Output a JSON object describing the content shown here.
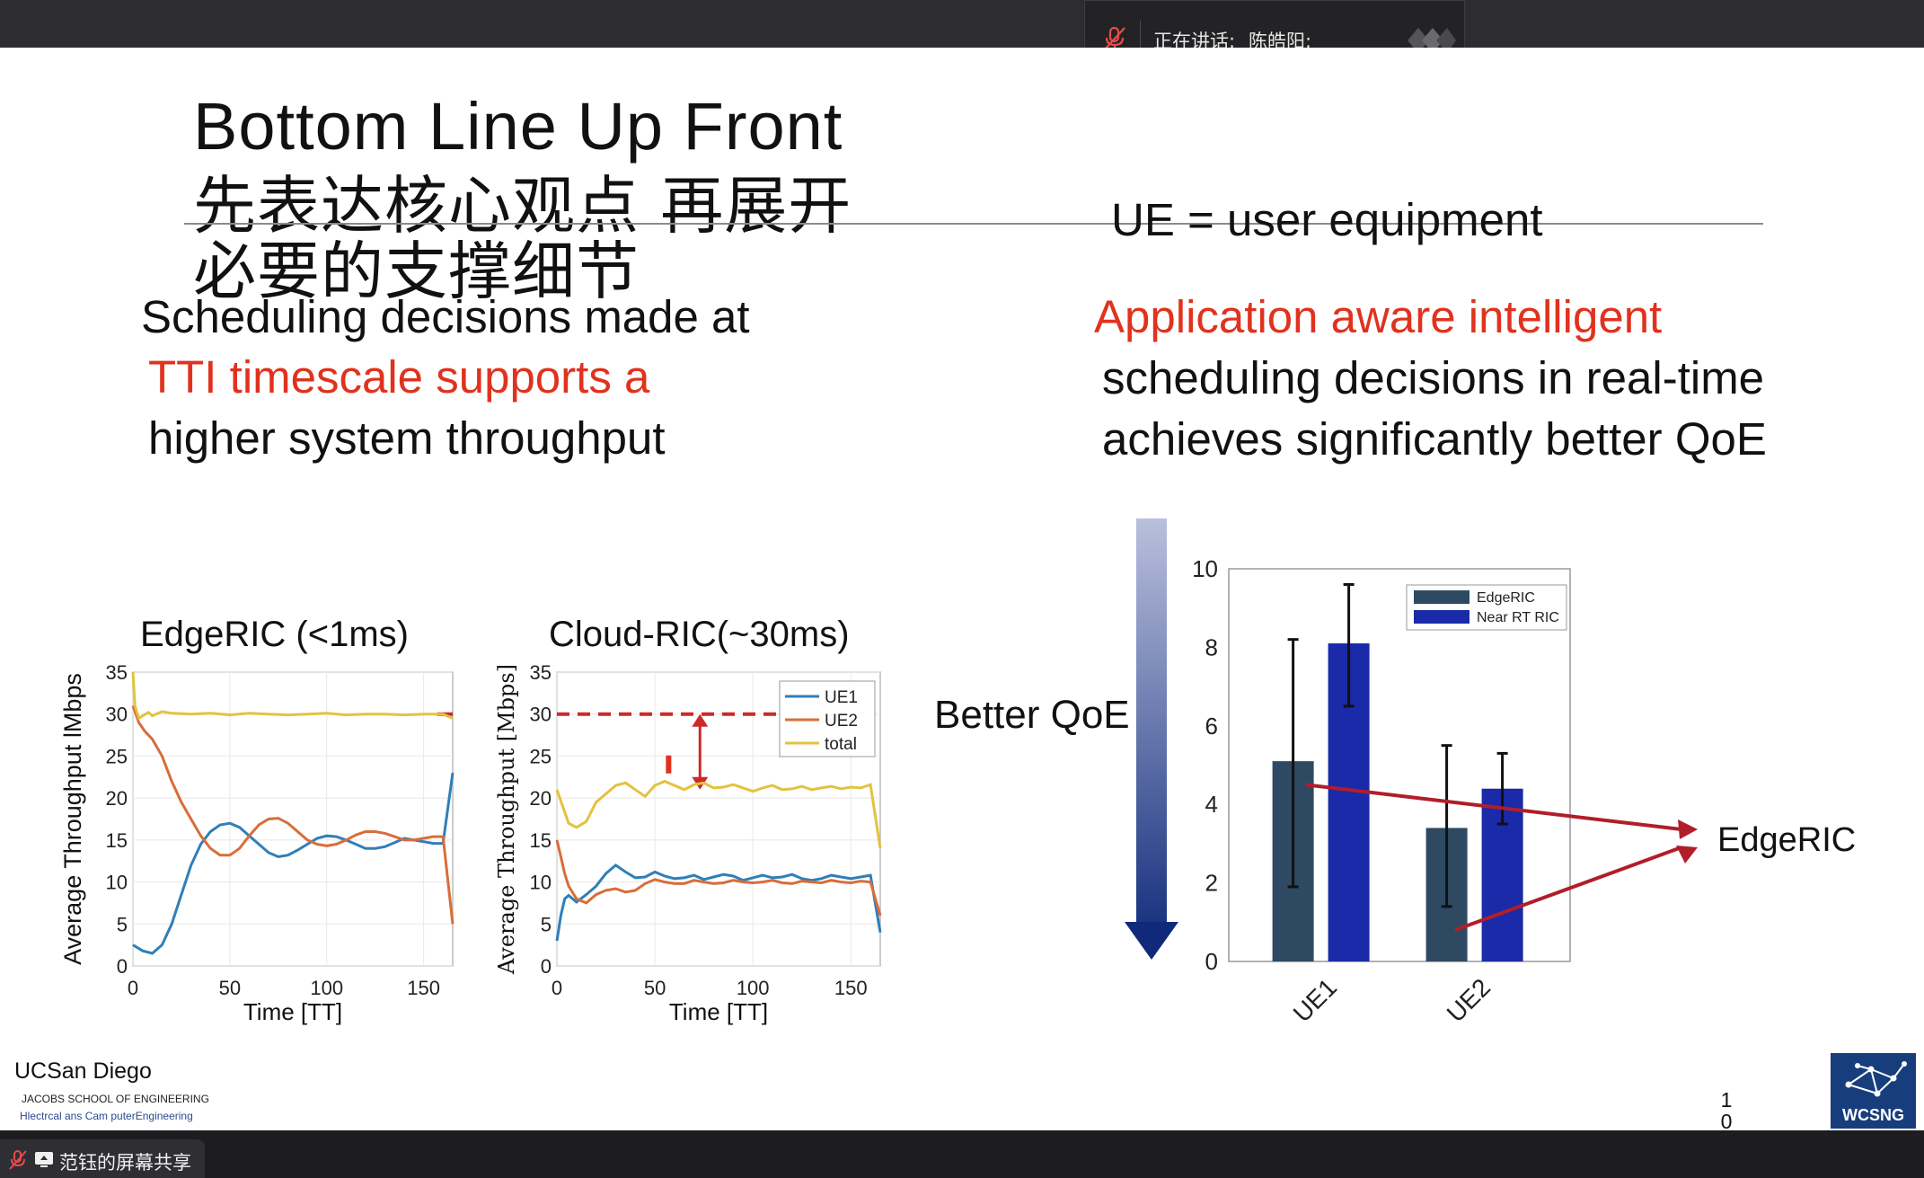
{
  "meeting": {
    "speaking_label": "正在讲话:",
    "speaker_name": "陈皓阳;",
    "share_label": "范钰的屏幕共享",
    "icons": [
      "muted-mic-icon",
      "screen-share-icon"
    ]
  },
  "slide": {
    "title_en": "Bottom  Line  Up  Front",
    "title_cn_1": "先表达核心观点 再展开",
    "title_cn_2": "必要的支撑细节",
    "ue_def": "UE = user equipment",
    "left_text": {
      "line1": "Scheduling decisions made at",
      "line2": "TTI timescale supports a",
      "line3": "higher  system  throughput"
    },
    "right_text": {
      "line1": "Application   aware   intelligent",
      "line2": "scheduling  decisions  in  real-time",
      "line3": "achieves  significantly  better  QoE"
    },
    "better_qoe": "Better QoE",
    "edgeric_label": "EdgeRIC",
    "footer": {
      "uni": "UCSan Diego",
      "school": "JACOBS SCHOOL OF  ENGINEERING",
      "dept": "Hlectrcal ans Cam  puterEngineering",
      "page_1": "1",
      "page_2": "0",
      "logo_text": "WCSNG"
    },
    "colors": {
      "red_text": "#e0321e",
      "ue1": "#2f7fb8",
      "ue2": "#d96d3a",
      "total": "#e3c23f",
      "edgeric_bar": "#2e4a63",
      "nearrt_bar": "#1a2aa8",
      "arrow": "#b01e2a"
    }
  },
  "chart_data": [
    {
      "type": "line",
      "title": "EdgeRIC (<1ms)",
      "xlabel": "Time  [TT]",
      "ylabel": "Average  Throughput  lMbps",
      "xlim": [
        0,
        165
      ],
      "ylim": [
        0,
        35
      ],
      "xticks": [
        "0",
        "50",
        "100",
        "150"
      ],
      "yticks": [
        "0",
        "5",
        "10",
        "15",
        "20",
        "25",
        "30",
        "35"
      ],
      "grid": true,
      "series": [
        {
          "name": "UE1",
          "color": "#2f7fb8",
          "x": [
            0,
            5,
            10,
            15,
            20,
            25,
            30,
            35,
            40,
            45,
            50,
            55,
            60,
            65,
            70,
            75,
            80,
            85,
            90,
            95,
            100,
            105,
            110,
            115,
            120,
            125,
            130,
            135,
            140,
            145,
            150,
            155,
            160,
            165
          ],
          "y": [
            2.5,
            1.8,
            1.5,
            2.5,
            5,
            8.5,
            12,
            14.5,
            16,
            16.8,
            17,
            16.5,
            15.5,
            14.5,
            13.5,
            13,
            13.2,
            13.8,
            14.5,
            15.2,
            15.5,
            15.4,
            15,
            14.5,
            14,
            14,
            14.2,
            14.7,
            15.2,
            15,
            14.8,
            14.6,
            14.6,
            23
          ]
        },
        {
          "name": "UE2",
          "color": "#d96d3a",
          "x": [
            0,
            3,
            6,
            10,
            15,
            20,
            25,
            30,
            35,
            40,
            45,
            50,
            55,
            60,
            65,
            70,
            75,
            80,
            85,
            90,
            95,
            100,
            105,
            110,
            115,
            120,
            125,
            130,
            135,
            140,
            145,
            150,
            155,
            160,
            165
          ],
          "y": [
            31,
            29,
            28,
            27,
            25,
            22,
            19.5,
            17.5,
            15.5,
            14,
            13.2,
            13.2,
            14,
            15.5,
            16.8,
            17.5,
            17.6,
            17,
            16,
            15,
            14.5,
            14.3,
            14.5,
            15,
            15.6,
            16,
            16,
            15.8,
            15.4,
            15,
            15,
            15.2,
            15.4,
            15.4,
            5
          ]
        },
        {
          "name": "total",
          "color": "#e3c23f",
          "x": [
            0,
            1,
            3,
            5,
            8,
            10,
            15,
            20,
            30,
            40,
            50,
            60,
            70,
            80,
            90,
            100,
            110,
            120,
            130,
            140,
            150,
            160,
            165
          ],
          "y": [
            35,
            31,
            29.5,
            29.8,
            30.2,
            29.8,
            30.3,
            30.1,
            30,
            30.1,
            29.9,
            30.1,
            30,
            29.9,
            30,
            30.1,
            29.9,
            30,
            30,
            29.9,
            30,
            30,
            29.5
          ]
        }
      ],
      "annotations": [
        {
          "type": "hline",
          "y": 30,
          "xfrom": 157,
          "xto": 165,
          "color": "#cc2a2a"
        }
      ]
    },
    {
      "type": "line",
      "title": "Cloud-RIC(~30ms)",
      "xlabel": "Time  [TT]",
      "ylabel": "Average Throughput  [Mbps]",
      "xlim": [
        0,
        165
      ],
      "ylim": [
        0,
        35
      ],
      "xticks": [
        "0",
        "50",
        "100",
        "150"
      ],
      "yticks": [
        "0",
        "5",
        "10",
        "15",
        "20",
        "25",
        "30",
        "35"
      ],
      "grid": true,
      "legend": {
        "position": "top-right",
        "entries": [
          "UE1",
          "UE2",
          "total"
        ]
      },
      "series": [
        {
          "name": "UE1",
          "color": "#2f7fb8",
          "x": [
            0,
            2,
            4,
            6,
            10,
            15,
            20,
            25,
            30,
            35,
            40,
            45,
            50,
            55,
            60,
            65,
            70,
            75,
            80,
            85,
            90,
            95,
            100,
            105,
            110,
            115,
            120,
            125,
            130,
            135,
            140,
            145,
            150,
            155,
            160,
            165
          ],
          "y": [
            3,
            6,
            8,
            8.4,
            7.6,
            8.5,
            9.5,
            11,
            12,
            11.2,
            10.5,
            10.6,
            11.2,
            10.7,
            10.4,
            10.5,
            10.8,
            10.3,
            10.6,
            10.9,
            10.7,
            10.2,
            10.5,
            10.8,
            10.5,
            10.6,
            10.9,
            10.4,
            10.2,
            10.4,
            10.8,
            10.6,
            10.4,
            10.6,
            10.8,
            4
          ]
        },
        {
          "name": "UE2",
          "color": "#d96d3a",
          "x": [
            0,
            2,
            4,
            6,
            10,
            15,
            20,
            25,
            30,
            35,
            40,
            45,
            50,
            55,
            60,
            65,
            70,
            75,
            80,
            85,
            90,
            95,
            100,
            105,
            110,
            115,
            120,
            125,
            130,
            135,
            140,
            145,
            150,
            155,
            160,
            165
          ],
          "y": [
            15,
            13,
            11,
            9.5,
            8,
            7.5,
            8.5,
            9,
            9.2,
            8.8,
            9,
            9.8,
            10.3,
            10,
            9.8,
            9.8,
            10.2,
            10,
            9.8,
            9.9,
            10.2,
            10,
            9.9,
            10,
            10.2,
            9.9,
            9.8,
            10.1,
            10,
            9.9,
            10.2,
            10,
            9.9,
            10.1,
            10,
            6
          ]
        },
        {
          "name": "total",
          "color": "#e3c23f",
          "x": [
            0,
            3,
            6,
            10,
            15,
            20,
            25,
            30,
            35,
            40,
            45,
            50,
            55,
            60,
            65,
            70,
            75,
            80,
            85,
            90,
            95,
            100,
            105,
            110,
            115,
            120,
            125,
            130,
            135,
            140,
            145,
            150,
            155,
            160,
            165
          ],
          "y": [
            21,
            19,
            17,
            16.5,
            17.2,
            19.5,
            20.5,
            21.5,
            21.8,
            21,
            20.2,
            21.5,
            22,
            21.5,
            21,
            21.6,
            21.8,
            21.2,
            21.3,
            21.6,
            21.2,
            20.8,
            21.2,
            21.5,
            21,
            21.1,
            21.4,
            21,
            21.2,
            21.4,
            21.1,
            21.3,
            21.2,
            21.6,
            14
          ]
        }
      ],
      "annotations": [
        {
          "type": "hline",
          "y": 30,
          "xfrom": 0,
          "xto": 120,
          "color": "#cc2a2a",
          "dashed": true
        },
        {
          "type": "double-arrow",
          "x": 73,
          "yfrom": 21,
          "yto": 30,
          "color": "#cc2a2a"
        },
        {
          "type": "marker",
          "x": 57,
          "y": 24,
          "color": "#e0321e"
        }
      ]
    },
    {
      "type": "bar",
      "categories": [
        "UE1",
        "UE2"
      ],
      "ylim": [
        0,
        10
      ],
      "yticks": [
        "0",
        "2",
        "4",
        "6",
        "8",
        "10"
      ],
      "legend": {
        "position": "top-right",
        "entries": [
          "EdgeRIC",
          "Near RT RIC"
        ]
      },
      "series": [
        {
          "name": "EdgeRIC",
          "color": "#2e4a63",
          "values": [
            5.1,
            3.4
          ],
          "err_low": [
            1.9,
            1.4
          ],
          "err_high": [
            8.2,
            5.5
          ]
        },
        {
          "name": "Near RT RIC",
          "color": "#1a2aa8",
          "values": [
            8.1,
            4.4
          ],
          "err_low": [
            6.5,
            3.5
          ],
          "err_high": [
            9.6,
            5.3
          ]
        }
      ]
    }
  ]
}
